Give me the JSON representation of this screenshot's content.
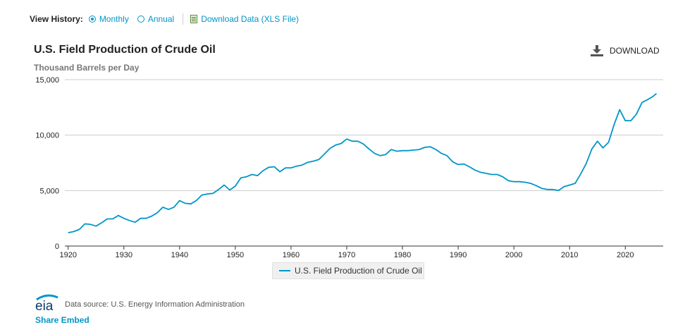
{
  "history": {
    "label": "View History:",
    "options": [
      {
        "label": "Monthly",
        "checked": true
      },
      {
        "label": "Annual",
        "checked": false
      }
    ],
    "download_data_label": "Download Data (XLS File)"
  },
  "download_button_label": "DOWNLOAD",
  "legend_label": "U.S. Field Production of Crude Oil",
  "footer": {
    "logo_text": "eia",
    "source": "Data source: U.S. Energy Information Administration",
    "share_label": "Share Embed"
  },
  "colors": {
    "series": "#0096c8",
    "accent": "#0096c8",
    "grid": "#cccccc",
    "logo": "#0b3b6e"
  },
  "chart_data": {
    "type": "line",
    "title": "U.S. Field Production of Crude Oil",
    "subtitle": "Thousand Barrels per Day",
    "xlabel": "",
    "ylabel": "Thousand Barrels per Day",
    "xlim": [
      1919.4,
      2026.8
    ],
    "ylim": [
      0,
      15000
    ],
    "yticks": [
      0,
      5000,
      10000,
      15000
    ],
    "ytick_labels": [
      "0",
      "5,000",
      "10,000",
      "15,000"
    ],
    "xticks": [
      1920,
      1930,
      1940,
      1950,
      1960,
      1970,
      1980,
      1990,
      2000,
      2010,
      2020
    ],
    "legend": "bottom-center",
    "series": [
      {
        "name": "U.S. Field Production of Crude Oil",
        "x": [
          1920,
          1921,
          1922,
          1923,
          1924,
          1925,
          1926,
          1927,
          1928,
          1929,
          1930,
          1931,
          1932,
          1933,
          1934,
          1935,
          1936,
          1937,
          1938,
          1939,
          1940,
          1941,
          1942,
          1943,
          1944,
          1945,
          1946,
          1947,
          1948,
          1949,
          1950,
          1951,
          1952,
          1953,
          1954,
          1955,
          1956,
          1957,
          1958,
          1959,
          1960,
          1961,
          1962,
          1963,
          1964,
          1965,
          1966,
          1967,
          1968,
          1969,
          1970,
          1971,
          1972,
          1973,
          1974,
          1975,
          1976,
          1977,
          1978,
          1979,
          1980,
          1981,
          1982,
          1983,
          1984,
          1985,
          1986,
          1987,
          1988,
          1989,
          1990,
          1991,
          1992,
          1993,
          1994,
          1995,
          1996,
          1997,
          1998,
          1999,
          2000,
          2001,
          2002,
          2003,
          2004,
          2005,
          2006,
          2007,
          2008,
          2009,
          2010,
          2011,
          2012,
          2013,
          2014,
          2015,
          2016,
          2017,
          2018,
          2019,
          2020,
          2021,
          2022,
          2023,
          2024,
          2025,
          2025.6
        ],
        "y": [
          1200,
          1300,
          1500,
          2000,
          1950,
          1800,
          2100,
          2450,
          2450,
          2750,
          2500,
          2300,
          2150,
          2500,
          2500,
          2700,
          3000,
          3500,
          3300,
          3500,
          4100,
          3850,
          3800,
          4100,
          4600,
          4700,
          4750,
          5100,
          5500,
          5050,
          5400,
          6150,
          6250,
          6450,
          6350,
          6800,
          7100,
          7150,
          6700,
          7050,
          7050,
          7200,
          7300,
          7550,
          7650,
          7800,
          8300,
          8800,
          9100,
          9250,
          9650,
          9450,
          9450,
          9200,
          8750,
          8350,
          8150,
          8250,
          8700,
          8550,
          8600,
          8600,
          8650,
          8700,
          8900,
          8950,
          8700,
          8350,
          8150,
          7600,
          7350,
          7400,
          7150,
          6850,
          6650,
          6550,
          6450,
          6450,
          6250,
          5900,
          5800,
          5800,
          5750,
          5650,
          5450,
          5200,
          5100,
          5100,
          5000,
          5350,
          5500,
          5650,
          6500,
          7450,
          8750,
          9450,
          8850,
          9350,
          10950,
          12300,
          11300,
          11300,
          11900,
          12950,
          13200,
          13500,
          13750
        ]
      }
    ]
  }
}
